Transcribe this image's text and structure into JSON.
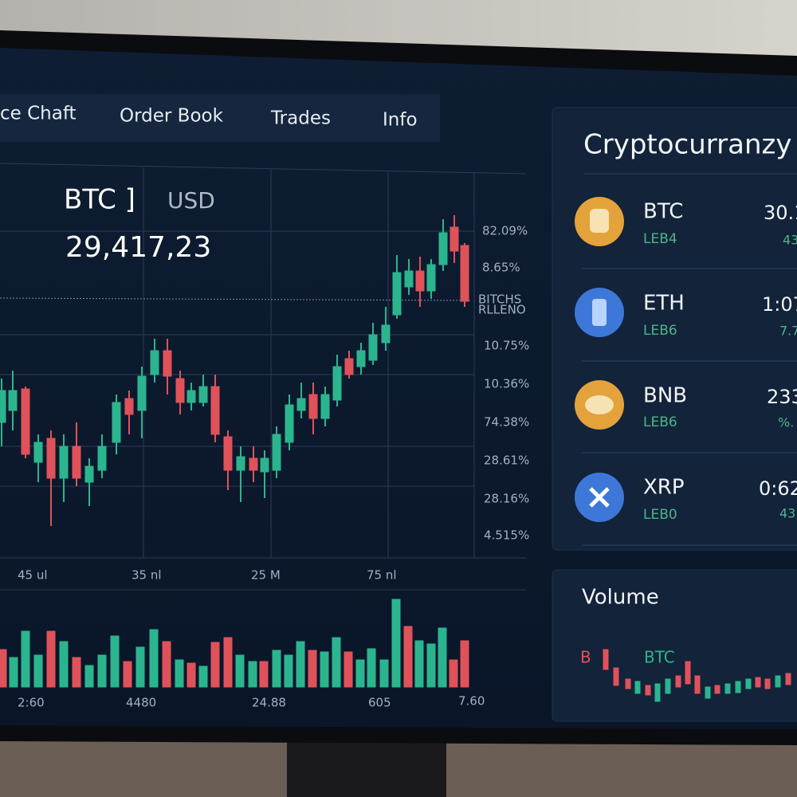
{
  "tabs": [
    "ce Chaft",
    "Order Book",
    "Trades",
    "Info"
  ],
  "pair": {
    "base": "BTC ]",
    "quote": "USD",
    "price": "29,417,23"
  },
  "y_labels": [
    "82.09%",
    "8.65%",
    "BITCHS",
    "RLLENO",
    "10.75%",
    "10.36%",
    "74.38%",
    "28.61%",
    "28.16%",
    "4.515%"
  ],
  "x_labels": [
    "45 ul",
    "35 nl",
    "25 M",
    "75 nl"
  ],
  "volume_x_labels": [
    "2:60",
    "4480",
    "24.88",
    "605",
    "7.60"
  ],
  "side_panel": {
    "title": "Cryptocurranzy",
    "coins": [
      {
        "symbol": "BTC",
        "network": "LEB4",
        "price": "30.1",
        "change": "43"
      },
      {
        "symbol": "ETH",
        "network": "LEB6",
        "price": "1:07",
        "change": "7.7"
      },
      {
        "symbol": "BNB",
        "network": "LEB6",
        "price": "233",
        "change": "%."
      },
      {
        "symbol": "XRP",
        "network": "LEB0",
        "price": "0:62",
        "change": "43"
      }
    ]
  },
  "volume_panel": {
    "title": "Volume",
    "labels": [
      "B",
      "BTC"
    ]
  }
}
